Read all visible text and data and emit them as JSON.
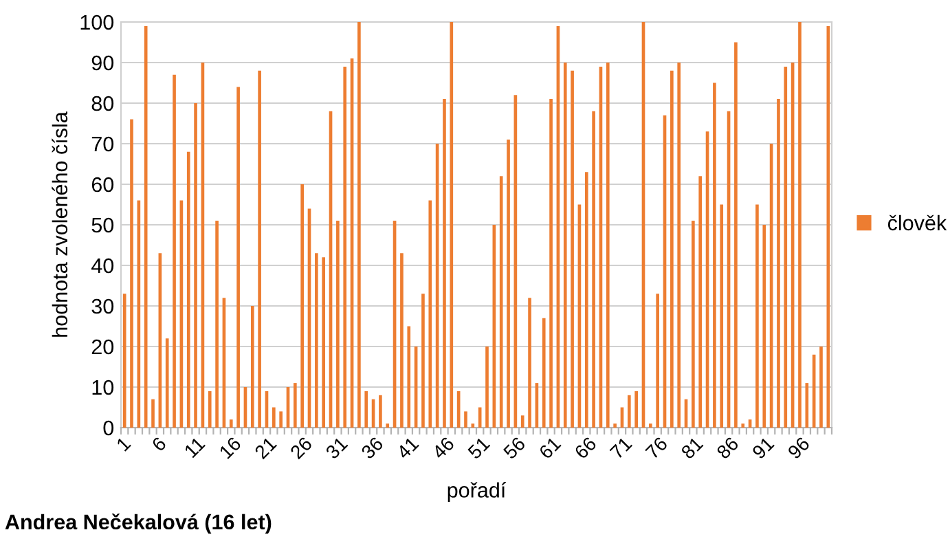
{
  "chart_data": {
    "type": "bar",
    "xlabel": "pořadí",
    "ylabel": "hodnota zvoleného čísla",
    "categories": [
      "1",
      null,
      null,
      null,
      null,
      "6",
      null,
      null,
      null,
      null,
      "11",
      null,
      null,
      null,
      null,
      "16",
      null,
      null,
      null,
      null,
      "21",
      null,
      null,
      null,
      null,
      "26",
      null,
      null,
      null,
      null,
      "31",
      null,
      null,
      null,
      null,
      "36",
      null,
      null,
      null,
      null,
      "41",
      null,
      null,
      null,
      null,
      "46",
      null,
      null,
      null,
      null,
      "51",
      null,
      null,
      null,
      null,
      "56",
      null,
      null,
      null,
      null,
      "61",
      null,
      null,
      null,
      null,
      "66",
      null,
      null,
      null,
      null,
      "71",
      null,
      null,
      null,
      null,
      "76",
      null,
      null,
      null,
      null,
      "81",
      null,
      null,
      null,
      null,
      "86",
      null,
      null,
      null,
      null,
      "91",
      null,
      null,
      null,
      null,
      "96",
      null,
      null,
      null,
      null
    ],
    "series": [
      {
        "name": "člověk",
        "color": "#ed7d31",
        "values": [
          33,
          76,
          56,
          99,
          7,
          43,
          22,
          87,
          56,
          68,
          80,
          90,
          9,
          51,
          32,
          2,
          84,
          10,
          30,
          88,
          9,
          5,
          4,
          10,
          11,
          60,
          54,
          43,
          42,
          78,
          51,
          89,
          91,
          100,
          9,
          7,
          8,
          1,
          51,
          43,
          25,
          20,
          33,
          56,
          70,
          81,
          100,
          9,
          4,
          1,
          5,
          20,
          50,
          62,
          71,
          82,
          3,
          32,
          11,
          27,
          81,
          99,
          90,
          88,
          55,
          63,
          78,
          89,
          90,
          1,
          5,
          8,
          9,
          100,
          1,
          33,
          77,
          88,
          90,
          7,
          51,
          62,
          73,
          85,
          55,
          78,
          95,
          1,
          2,
          55,
          50,
          70,
          81,
          89,
          90,
          100,
          11,
          18,
          20,
          99
        ]
      }
    ],
    "ylim": [
      0,
      100
    ],
    "yticks": [
      0,
      10,
      20,
      30,
      40,
      50,
      60,
      70,
      80,
      90,
      100
    ],
    "grid": "y",
    "legend": "right",
    "annotations": [
      "Andrea Nečekalová (16 let)"
    ]
  }
}
